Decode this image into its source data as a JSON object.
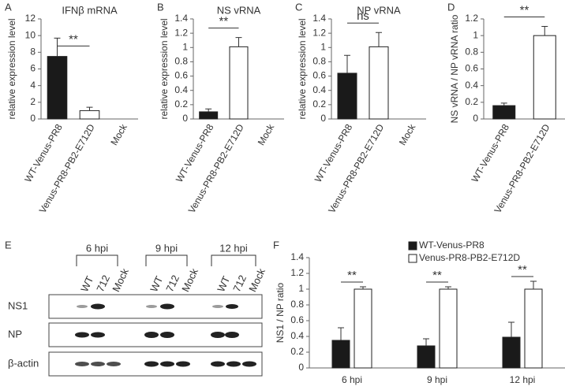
{
  "chart_data": [
    {
      "type": "bar",
      "label": "A",
      "title": "IFNβ mRNA",
      "ylabel": "relative expression level",
      "categories": [
        "WT-Venus-PR8",
        "Venus-PR8-PB2-E712D",
        "Mock"
      ],
      "values": [
        7.5,
        1.0,
        null
      ],
      "errors": [
        2.2,
        0.4,
        null
      ],
      "colors": [
        "#1a1a1a",
        "#ffffff",
        "#ffffff"
      ],
      "ylim": [
        0,
        12
      ],
      "yticks": [
        0,
        2,
        4,
        6,
        8,
        10,
        12
      ],
      "significance": "**"
    },
    {
      "type": "bar",
      "label": "B",
      "title": "NS vRNA",
      "ylabel": "relative expression level",
      "categories": [
        "WT-Venus-PR8",
        "Venus-PR8-PB2-E712D",
        "Mock"
      ],
      "values": [
        0.1,
        1.01,
        null
      ],
      "errors": [
        0.04,
        0.13,
        null
      ],
      "colors": [
        "#1a1a1a",
        "#ffffff",
        "#ffffff"
      ],
      "ylim": [
        0,
        1.4
      ],
      "yticks": [
        0,
        0.2,
        0.4,
        0.6,
        0.8,
        1,
        1.2,
        1.4
      ],
      "significance": "**"
    },
    {
      "type": "bar",
      "label": "C",
      "title": "NP vRNA",
      "ylabel": "relative expression level",
      "categories": [
        "WT-Venus-PR8",
        "Venus-PR8-PB2-E712D",
        "Mock"
      ],
      "values": [
        0.64,
        1.01,
        null
      ],
      "errors": [
        0.25,
        0.2,
        null
      ],
      "colors": [
        "#1a1a1a",
        "#ffffff",
        "#ffffff"
      ],
      "ylim": [
        0,
        1.4
      ],
      "yticks": [
        0,
        0.2,
        0.4,
        0.6,
        0.8,
        1,
        1.2,
        1.4
      ],
      "significance": "ns"
    },
    {
      "type": "bar",
      "label": "D",
      "ylabel": "NS vRNA / NP vRNA ratio",
      "categories": [
        "WT-Venus-PR8",
        "Venus-PR8-PB2-E712D"
      ],
      "values": [
        0.16,
        1.0
      ],
      "errors": [
        0.03,
        0.11
      ],
      "colors": [
        "#1a1a1a",
        "#ffffff"
      ],
      "ylim": [
        0,
        1.2
      ],
      "yticks": [
        0,
        0.2,
        0.4,
        0.6,
        0.8,
        1,
        1.2
      ],
      "significance": "**"
    },
    {
      "type": "grouped-bar",
      "label": "F",
      "ylabel": "NS1 / NP ratio",
      "categories": [
        "6 hpi",
        "9 hpi",
        "12 hpi"
      ],
      "series": [
        {
          "name": "WT-Venus-PR8",
          "color": "#1a1a1a",
          "values": [
            0.35,
            0.28,
            0.39
          ],
          "errors": [
            0.16,
            0.09,
            0.19
          ]
        },
        {
          "name": "Venus-PR8-PB2-E712D",
          "color": "#ffffff",
          "values": [
            1,
            1,
            1
          ],
          "errors": [
            0.03,
            0.03,
            0.1
          ]
        }
      ],
      "ylim": [
        0,
        1.4
      ],
      "yticks": [
        0,
        0.2,
        0.4,
        0.6,
        0.8,
        1,
        1.2,
        1.4
      ],
      "significance": [
        "**",
        "**",
        "**"
      ],
      "legend": "top"
    }
  ],
  "blot": {
    "label": "E",
    "timepoints": [
      "6 hpi",
      "9 hpi",
      "12 hpi"
    ],
    "lanes": [
      "WT",
      "712",
      "Mock"
    ],
    "rows": [
      "NS1",
      "NP",
      "β-actin"
    ]
  }
}
